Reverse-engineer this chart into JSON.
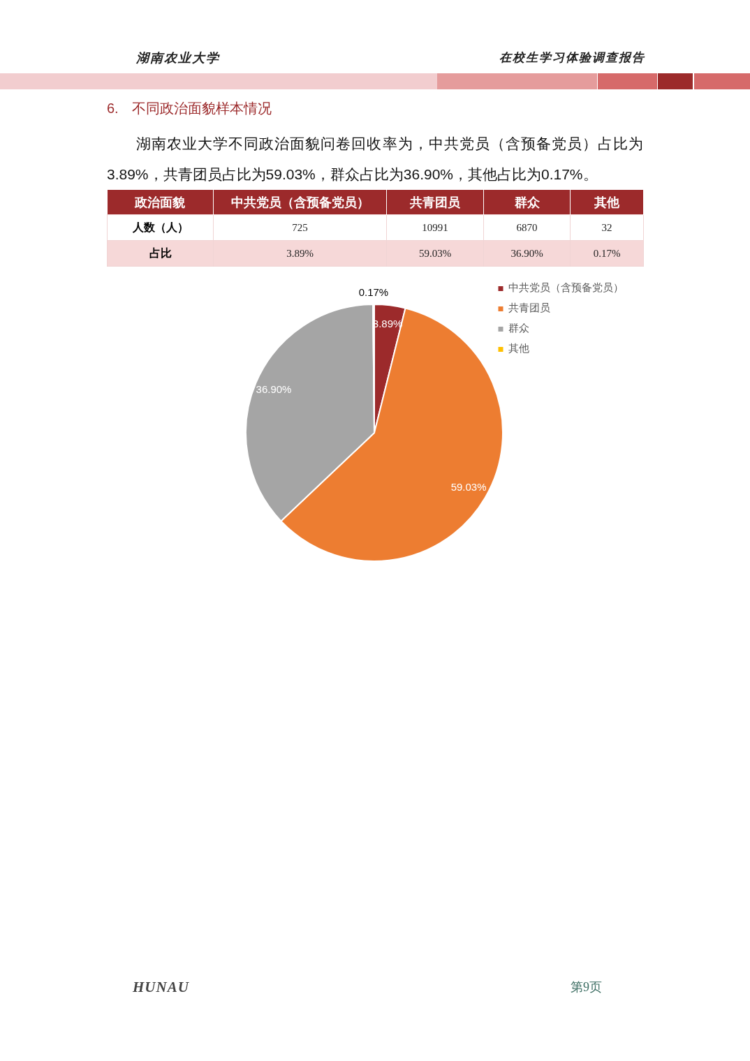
{
  "chart_data": {
    "type": "pie",
    "title": "6. 不同政治面貌样本情况",
    "subtitle": "湖南农业大学不同政治面貌问卷回收率为，中共党员（含预备党员）占比为3.89%，共青团员占比为59.03%，群众占比为36.90%，其他占比为0.17%。",
    "categories": [
      "中共党员（含预备党员）",
      "共青团员",
      "群众",
      "其他"
    ],
    "values": [
      3.89,
      59.03,
      36.9,
      0.17
    ],
    "colors": [
      "#9c2a2b",
      "#ed7d31",
      "#a5a5a5",
      "#ffc000"
    ],
    "value_labels": [
      "3.89%",
      "59.03%",
      "36.90%",
      "0.17%"
    ],
    "legend": "top right",
    "annotations": [
      "湖南农业大学",
      "在校生学习体验调查报告",
      "政治面貌",
      "人数（人）",
      "725",
      "10991",
      "6870",
      "32",
      "占比",
      "HUNAU",
      "第9页"
    ]
  }
}
